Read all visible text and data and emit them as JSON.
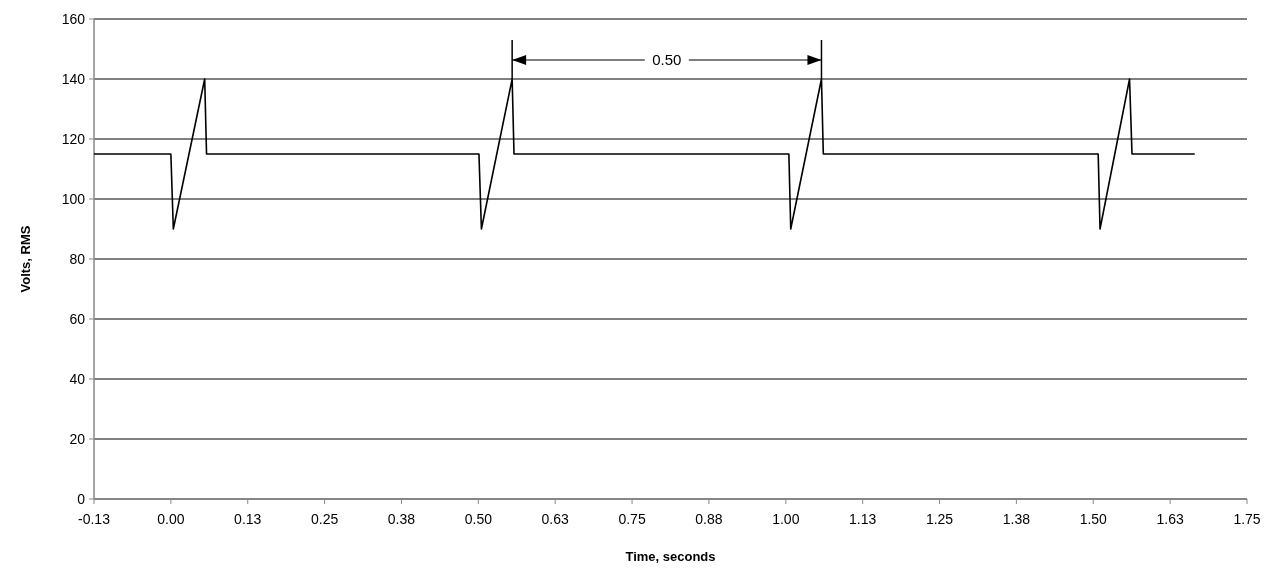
{
  "chart_data": {
    "type": "line",
    "xlabel": "Time, seconds",
    "ylabel": "Volts, RMS",
    "x": [
      -0.125,
      0,
      0.004,
      0.055,
      0.058,
      0.501,
      0.505,
      0.555,
      0.558,
      1.005,
      1.008,
      1.058,
      1.061,
      1.508,
      1.511,
      1.559,
      1.563,
      1.665
    ],
    "series": [
      {
        "color": "#000000",
        "values": [
          115,
          115,
          90,
          140,
          115,
          115,
          90,
          140,
          115,
          115,
          90,
          140,
          115,
          115,
          90,
          140,
          115,
          115
        ]
      }
    ],
    "xlim": [
      -0.125,
      1.75
    ],
    "xticks": [
      {
        "value": -0.125,
        "label": "-0.13"
      },
      {
        "value": 0,
        "label": "0.00"
      },
      {
        "value": 0.125,
        "label": "0.13"
      },
      {
        "value": 0.25,
        "label": "0.25"
      },
      {
        "value": 0.375,
        "label": "0.38"
      },
      {
        "value": 0.5,
        "label": "0.50"
      },
      {
        "value": 0.625,
        "label": "0.63"
      },
      {
        "value": 0.75,
        "label": "0.75"
      },
      {
        "value": 0.875,
        "label": "0.88"
      },
      {
        "value": 1,
        "label": "1.00"
      },
      {
        "value": 1.125,
        "label": "1.13"
      },
      {
        "value": 1.25,
        "label": "1.25"
      },
      {
        "value": 1.375,
        "label": "1.38"
      },
      {
        "value": 1.5,
        "label": "1.50"
      },
      {
        "value": 1.625,
        "label": "1.63"
      },
      {
        "value": 1.75,
        "label": "1.75"
      }
    ],
    "ylim": [
      0,
      160
    ],
    "yticks": [
      0,
      20,
      40,
      60,
      80,
      100,
      120,
      140,
      160
    ],
    "grid": "y",
    "marker": "none",
    "line_style": "solid",
    "annotations": [
      "0.50"
    ]
  }
}
